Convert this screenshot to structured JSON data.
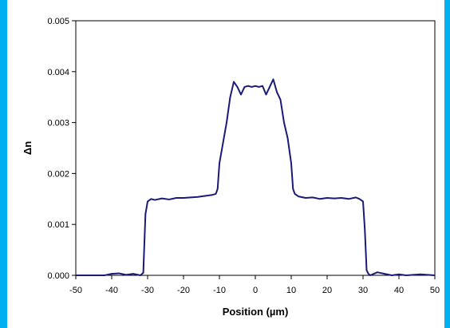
{
  "chart_data": {
    "type": "line",
    "title": "",
    "xlabel": "Position (µm)",
    "ylabel": "Δn",
    "xlim": [
      -50,
      50
    ],
    "ylim": [
      0,
      0.005
    ],
    "x_ticks": [
      "-50",
      "-40",
      "-30",
      "-20",
      "-10",
      "0",
      "10",
      "20",
      "30",
      "40",
      "50"
    ],
    "y_ticks": [
      "0.000",
      "0.001",
      "0.002",
      "0.003",
      "0.004",
      "0.005"
    ],
    "grid": false,
    "legend": "none",
    "line_color": "#1a1a7a",
    "background_color": "#00b0f0",
    "series": [
      {
        "x": [
          -50,
          -42,
          -40,
          -38,
          -36,
          -34,
          -32,
          -31.2,
          -30.6,
          -30,
          -29,
          -28,
          -26,
          -24,
          -22,
          -20,
          -18,
          -16,
          -14,
          -12,
          -11,
          -10.5,
          -10,
          -9,
          -8,
          -7,
          -6,
          -5,
          -4,
          -3,
          -2,
          -1,
          0,
          1,
          2,
          3,
          4,
          5,
          6,
          7,
          8,
          9,
          10,
          10.5,
          11,
          12,
          14,
          16,
          18,
          20,
          22,
          24,
          26,
          28,
          29,
          30,
          30.5,
          31,
          31.5,
          32,
          34,
          36,
          38,
          40,
          42,
          44,
          46,
          48,
          50
        ],
        "y": [
          0,
          0,
          3e-05,
          4e-05,
          1e-05,
          3e-05,
          0,
          5e-05,
          0.0012,
          0.00145,
          0.0015,
          0.00148,
          0.00151,
          0.00149,
          0.00152,
          0.00152,
          0.00153,
          0.00154,
          0.00156,
          0.00158,
          0.0016,
          0.0017,
          0.0022,
          0.0026,
          0.003,
          0.0035,
          0.0038,
          0.0037,
          0.00355,
          0.0037,
          0.00372,
          0.0037,
          0.00372,
          0.0037,
          0.00372,
          0.00355,
          0.0037,
          0.00385,
          0.0036,
          0.00345,
          0.003,
          0.0027,
          0.0022,
          0.0017,
          0.0016,
          0.00155,
          0.00152,
          0.00153,
          0.0015,
          0.00152,
          0.00151,
          0.00152,
          0.0015,
          0.00153,
          0.0015,
          0.00145,
          0.0009,
          0.0001,
          3e-05,
          0,
          6e-05,
          3e-05,
          0,
          2e-05,
          0,
          1e-05,
          2e-05,
          1e-05,
          0
        ]
      }
    ]
  }
}
